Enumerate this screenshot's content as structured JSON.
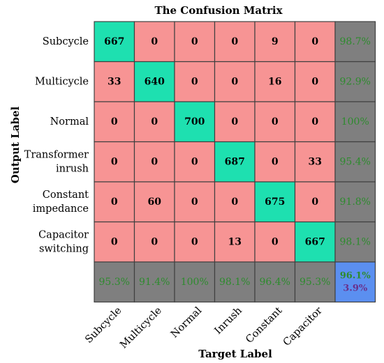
{
  "chart_data": {
    "type": "heatmap",
    "title": "The Confusion Matrix",
    "xlabel": "Target Label",
    "ylabel": "Output Label",
    "row_labels": [
      [
        "Subcycle"
      ],
      [
        "Multicycle"
      ],
      [
        "Normal"
      ],
      [
        "Transformer",
        "inrush"
      ],
      [
        "Constant",
        "impedance"
      ],
      [
        "Capacitor",
        "switching"
      ]
    ],
    "col_labels": [
      "Subcycle",
      "Multicycle",
      "Normal",
      "Inrush",
      "Constant",
      "Capacitor"
    ],
    "matrix": [
      [
        667,
        0,
        0,
        0,
        9,
        0
      ],
      [
        33,
        640,
        0,
        0,
        16,
        0
      ],
      [
        0,
        0,
        700,
        0,
        0,
        0
      ],
      [
        0,
        0,
        0,
        687,
        0,
        33
      ],
      [
        0,
        60,
        0,
        0,
        675,
        0
      ],
      [
        0,
        0,
        0,
        13,
        0,
        667
      ]
    ],
    "row_percent": [
      "98.7%",
      "92.9%",
      "100%",
      "95.4%",
      "91.8%",
      "98.1%"
    ],
    "col_percent": [
      "95.3%",
      "91.4%",
      "100%",
      "98.1%",
      "96.4%",
      "95.3%"
    ],
    "overall": {
      "accuracy": "96.1%",
      "error": "3.9%"
    }
  },
  "colors": {
    "diagonal": "#1ee0b0",
    "off_diagonal": "#f79494",
    "summary": "#7f7f7f",
    "overall": "#5b8ff0",
    "percent_text": "#2e8b2e",
    "error_text": "#6a2f8a",
    "cell_text": "#000000",
    "grid": "#404040"
  }
}
